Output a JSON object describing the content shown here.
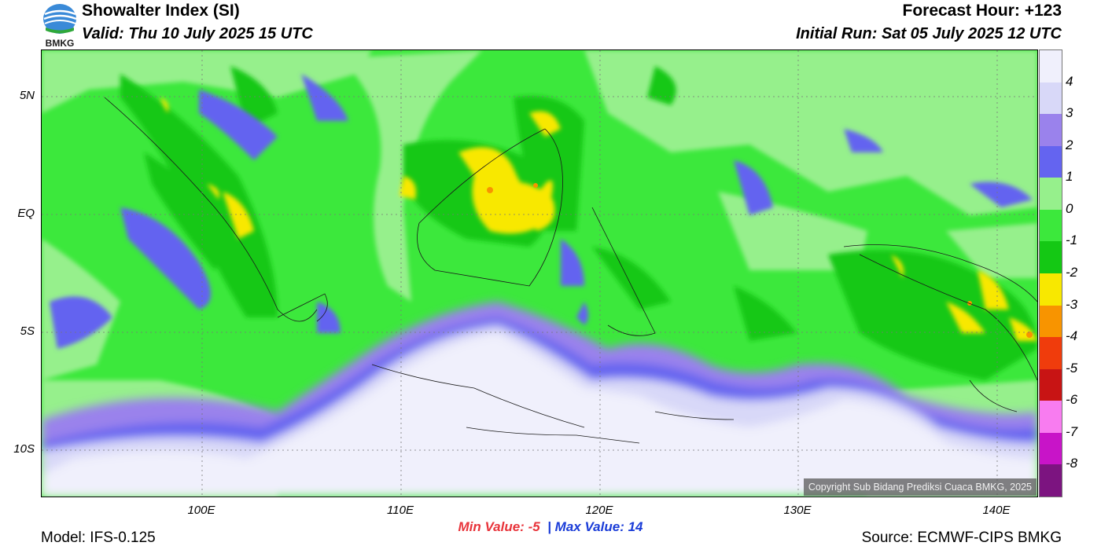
{
  "header": {
    "title": "Showalter Index (SI)",
    "valid": "Valid: Thu 10 July 2025 15 UTC",
    "forecast_hour": "Forecast Hour: +123",
    "initial_run": "Initial Run: Sat 05 July 2025 12 UTC",
    "logo_text": "BMKG"
  },
  "map": {
    "lat_labels": [
      "5N",
      "EQ",
      "5S",
      "10S"
    ],
    "lon_labels": [
      "100E",
      "110E",
      "120E",
      "130E",
      "140E"
    ],
    "copyright": "Copyright Sub Bidang Prediksi Cuaca BMKG, 2025"
  },
  "stats": {
    "min_label": "Min Value:",
    "min_value": "-5",
    "separator": "|",
    "max_label": "Max Value:",
    "max_value": "14"
  },
  "footer": {
    "model": "Model: IFS-0.125",
    "source": "Source: ECMWF-CIPS BMKG"
  },
  "colorbar": {
    "labels": [
      "4",
      "3",
      "2",
      "1",
      "0",
      "-1",
      "-2",
      "-3",
      "-4",
      "-5",
      "-6",
      "-7",
      "-8"
    ],
    "colors": [
      "#f0f0fc",
      "#d8d8f8",
      "#9a82ec",
      "#6464f0",
      "#96f08c",
      "#3ce83c",
      "#14c814",
      "#f8e800",
      "#f89400",
      "#f03c0c",
      "#c81414",
      "#f87cf0",
      "#c814c8",
      "#7c1480"
    ]
  }
}
